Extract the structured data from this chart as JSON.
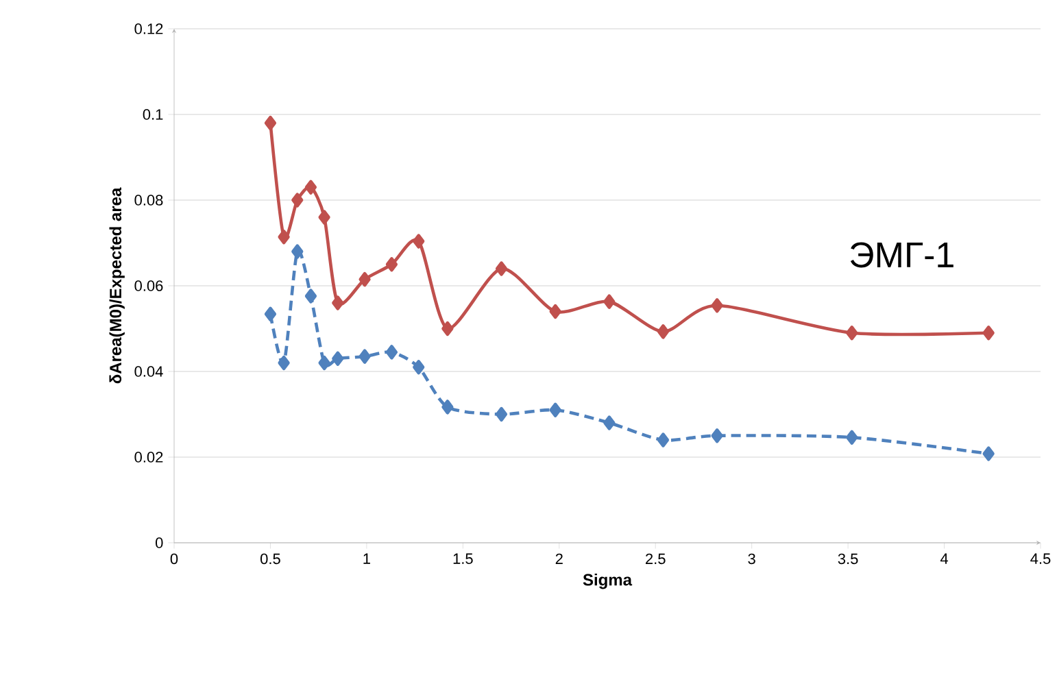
{
  "chart_data": {
    "type": "line",
    "xlabel": "Sigma",
    "ylabel": "δArea(M0)/Expected area",
    "annotations": [
      "ЭМГ-1"
    ],
    "x": [
      0.5,
      0.57,
      0.64,
      0.71,
      0.78,
      0.85,
      0.99,
      1.13,
      1.27,
      1.42,
      1.7,
      1.98,
      2.26,
      2.54,
      2.82,
      3.52,
      4.23
    ],
    "series": [
      {
        "color": "#c0504d",
        "line_style": "solid",
        "values": [
          0.098,
          0.0714,
          0.08,
          0.083,
          0.076,
          0.056,
          0.0615,
          0.065,
          0.0704,
          0.05,
          0.064,
          0.054,
          0.0563,
          0.0493,
          0.0554,
          0.049,
          0.049
        ]
      },
      {
        "color": "#4f81bd",
        "line_style": "dashed",
        "values": [
          0.0534,
          0.042,
          0.068,
          0.0576,
          0.042,
          0.043,
          0.0435,
          0.0445,
          0.041,
          0.0317,
          0.03,
          0.031,
          0.028,
          0.024,
          0.025,
          0.0246,
          0.0208
        ]
      }
    ],
    "xlim": [
      0,
      4.5
    ],
    "xticks": [
      0,
      0.5,
      1,
      1.5,
      2,
      2.5,
      3,
      3.5,
      4,
      4.5
    ],
    "ylim": [
      0,
      0.12
    ],
    "yticks": [
      0,
      0.02,
      0.04,
      0.06,
      0.08,
      0.1,
      0.12
    ],
    "grid": "y",
    "marker": "diamond"
  }
}
